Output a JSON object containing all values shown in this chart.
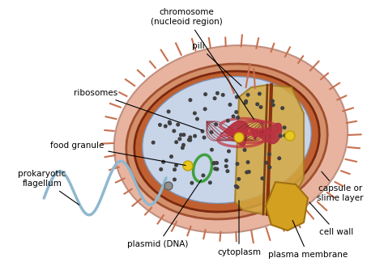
{
  "bg_color": "#ffffff",
  "labels": {
    "chromosome": "chromosome\n(nucleoid region)",
    "pili": "pili",
    "ribosomes": "ribosomes",
    "food_granule": "food granule",
    "prokaryotic_flagellum": "prokaryotic\nflagellum",
    "plasmid": "plasmid (DNA)",
    "cytoplasm": "cytoplasm",
    "plasma_membrane": "plasma membrane",
    "cell_wall": "cell wall",
    "capsule": "capsule or\nslime layer"
  },
  "colors": {
    "capsule_outer": "#e8b4a0",
    "capsule_spikes": "#c87050",
    "cell_wall_outer": "#d4785a",
    "cell_wall_inner": "#8b3a1a",
    "plasma_membrane": "#c8602a",
    "cytoplasm_bg": "#c8d4e8",
    "cytoplasm_dark": "#b0bcd4",
    "chromosome_color": "#b03040",
    "plasmid_color": "#40a040",
    "ribosome_color": "#404040",
    "food_granule_color": "#e8c820",
    "flagellum_color": "#90b8d0",
    "text_color": "#000000",
    "pili_color": "#c87050",
    "yellow_spot": "#e8d020",
    "cross_section_yellow": "#e8c840",
    "cross_section_dark": "#8b4010"
  },
  "figsize": [
    4.74,
    3.45
  ],
  "dpi": 100
}
